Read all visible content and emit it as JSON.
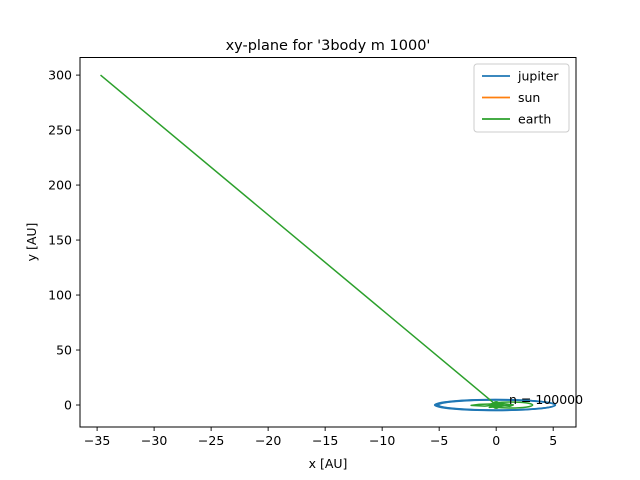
{
  "chart_data": {
    "type": "line",
    "title": "xy-plane for '3body m 1000'",
    "xlabel": "x [AU]",
    "ylabel": "y [AU]",
    "xlim": [
      -36.5,
      7.0
    ],
    "ylim": [
      -20,
      316
    ],
    "xticks": [
      -35,
      -30,
      -25,
      -20,
      -15,
      -10,
      -5,
      0,
      5
    ],
    "xtick_labels": [
      "−35",
      "−30",
      "−25",
      "−20",
      "−15",
      "−10",
      "−5",
      "0",
      "5"
    ],
    "yticks": [
      0,
      50,
      100,
      150,
      200,
      250,
      300
    ],
    "ytick_labels": [
      "0",
      "50",
      "100",
      "150",
      "200",
      "250",
      "300"
    ],
    "grid": false,
    "legend_position": "top-right",
    "annotation": "n = 100000",
    "series": [
      {
        "name": "jupiter",
        "color": "#1f77b4",
        "shape": "ellipse",
        "center": [
          0.0,
          0.0
        ],
        "radii": [
          5.3,
          5.0
        ],
        "orbit_count": 4
      },
      {
        "name": "sun",
        "color": "#ff7f0e",
        "x": [
          0.0,
          0.1,
          0.0
        ],
        "y": [
          0.0,
          0.2,
          0.0
        ]
      },
      {
        "name": "earth",
        "color": "#2ca02c",
        "x": [
          -34.7,
          -0.4,
          0.0,
          1.2,
          1.5,
          0.6,
          -1.5,
          -2.2,
          -1.0,
          0.8,
          1.4,
          0.2,
          -0.6,
          0.0
        ],
        "y": [
          300.0,
          3.5,
          0.0,
          -1.2,
          0.1,
          1.3,
          0.6,
          -0.3,
          -1.0,
          0.9,
          0.2,
          -1.5,
          -2.2,
          0.5
        ]
      }
    ]
  }
}
